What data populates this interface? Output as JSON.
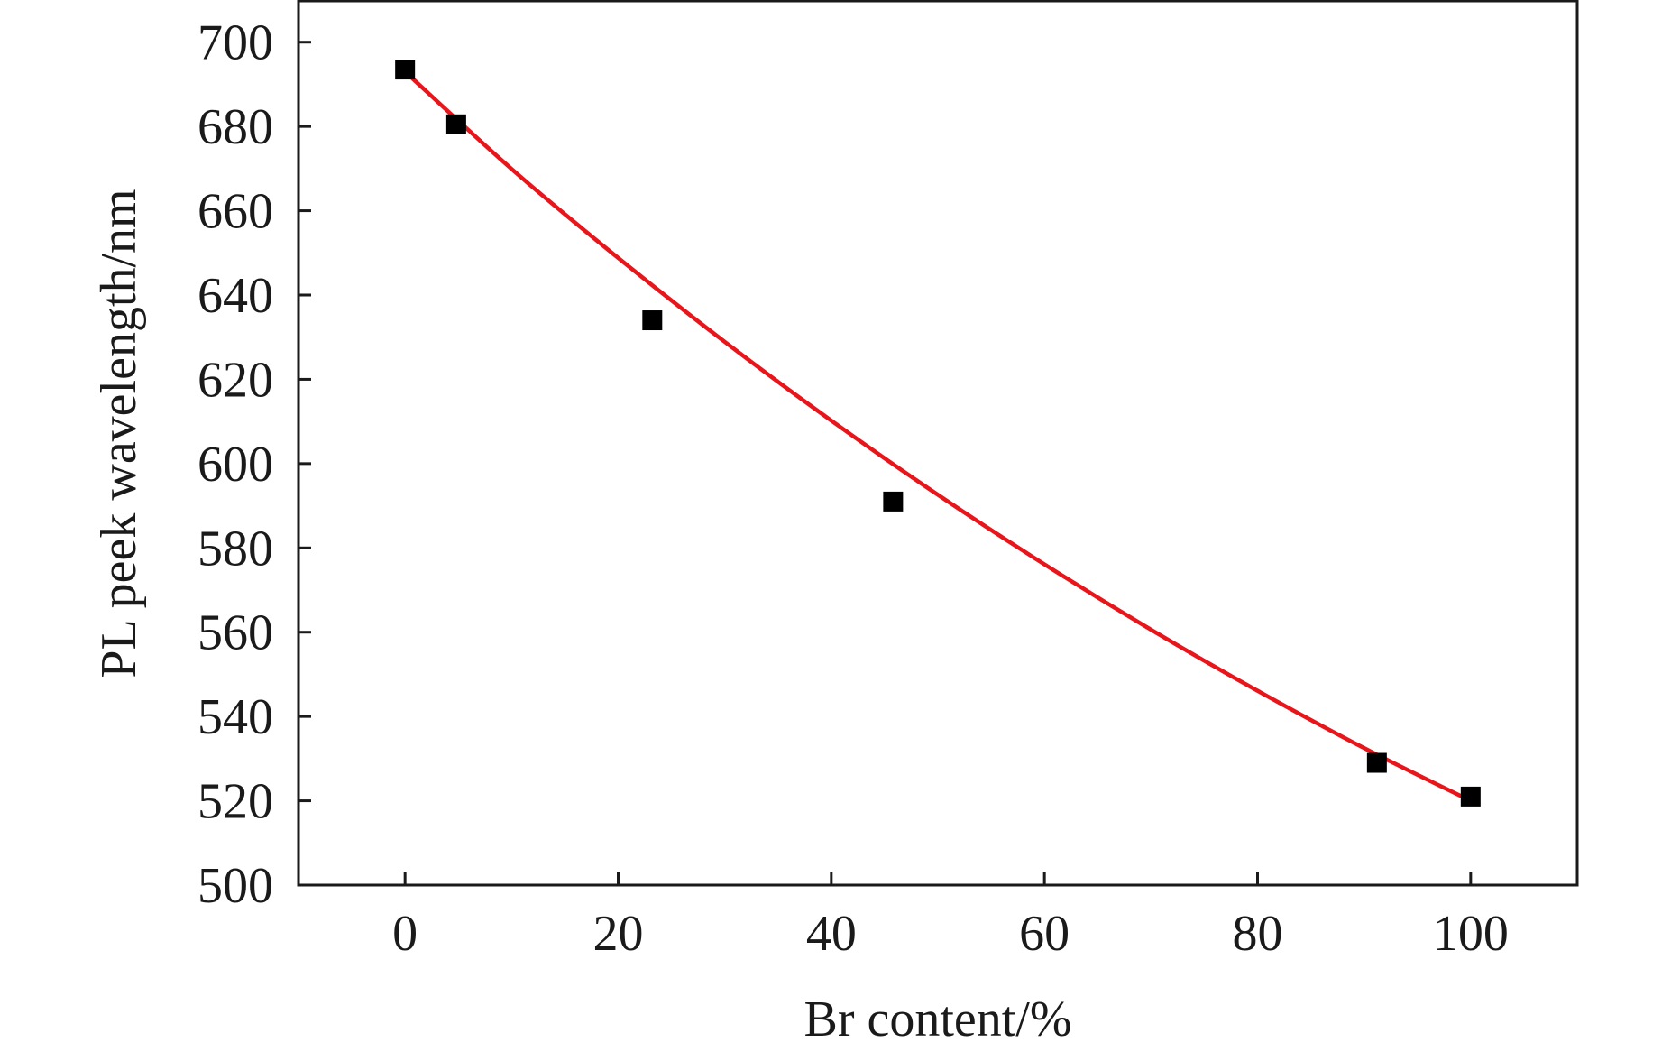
{
  "chart_data": {
    "type": "scatter",
    "title": "",
    "xlabel": "Br content/%",
    "ylabel": "PL peek wavelength/nm",
    "xlim": [
      -10,
      110
    ],
    "ylim": [
      500,
      710
    ],
    "xticks": [
      0,
      20,
      40,
      60,
      80,
      100
    ],
    "yticks": [
      500,
      520,
      540,
      560,
      580,
      600,
      620,
      640,
      660,
      680,
      700
    ],
    "grid": false,
    "legend": "none",
    "series": [
      {
        "marker": "square",
        "color": "#000000",
        "x": [
          0,
          4.8,
          23.2,
          45.8,
          91.2,
          100
        ],
        "y": [
          693.5,
          680.5,
          634,
          591,
          529,
          521
        ]
      },
      {
        "kind": "fit-line",
        "color": "#e8151b",
        "x": [
          0,
          10,
          20,
          30,
          40,
          50,
          60,
          70,
          80,
          90,
          100
        ],
        "y": [
          693,
          669.9,
          648.8,
          628.9,
          610.2,
          592.6,
          576.1,
          560.6,
          546.1,
          532.5,
          520
        ]
      }
    ]
  }
}
